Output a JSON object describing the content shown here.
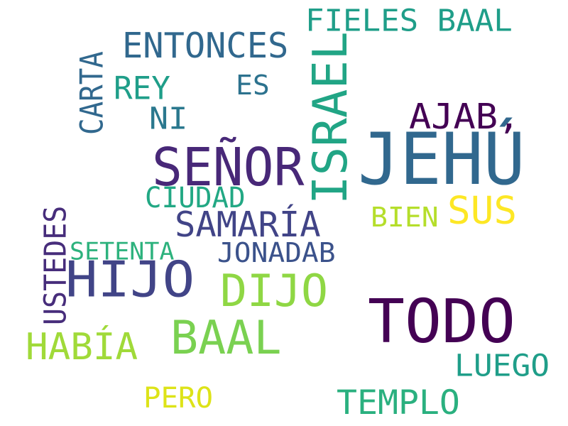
{
  "words": [
    {
      "text": "JEHÚ",
      "color": "#31688e",
      "vertical": false
    },
    {
      "text": "TODO",
      "color": "#440154",
      "vertical": false
    },
    {
      "text": "SEÑOR",
      "color": "#482878",
      "vertical": false
    },
    {
      "text": "ISRAEL",
      "color": "#21a585",
      "vertical": true
    },
    {
      "text": "HIJO",
      "color": "#414487",
      "vertical": false
    },
    {
      "text": "BAAL",
      "color": "#7ad151",
      "vertical": false
    },
    {
      "text": "DIJO",
      "color": "#8fd744",
      "vertical": false
    },
    {
      "text": "SUS",
      "color": "#fde725",
      "vertical": false
    },
    {
      "text": "ENTONCES",
      "color": "#31688e",
      "vertical": false
    },
    {
      "text": "FIELES BAAL",
      "color": "#1f9e89",
      "vertical": false
    },
    {
      "text": "AJAB,",
      "color": "#440154",
      "vertical": false
    },
    {
      "text": "SAMARÍA",
      "color": "#414487",
      "vertical": false
    },
    {
      "text": "HABÍA",
      "color": "#a0da39",
      "vertical": false
    },
    {
      "text": "TEMPLO",
      "color": "#2ab07f",
      "vertical": false
    },
    {
      "text": "LUEGO",
      "color": "#1f9e89",
      "vertical": false
    },
    {
      "text": "REY",
      "color": "#1f9e89",
      "vertical": false
    },
    {
      "text": "CIUDAD",
      "color": "#22a884",
      "vertical": false
    },
    {
      "text": "JONADAB",
      "color": "#3b528b",
      "vertical": false
    },
    {
      "text": "BIEN",
      "color": "#b5de2b",
      "vertical": false
    },
    {
      "text": "USTEDES",
      "color": "#472d7b",
      "vertical": true
    },
    {
      "text": "CARTA",
      "color": "#31688e",
      "vertical": true
    },
    {
      "text": "ES",
      "color": "#2c728e",
      "vertical": false
    },
    {
      "text": "NI",
      "color": "#2a788e",
      "vertical": false
    },
    {
      "text": "SETENTA",
      "color": "#2db27d",
      "vertical": false
    },
    {
      "text": "PERO",
      "color": "#dde318",
      "vertical": false
    }
  ]
}
